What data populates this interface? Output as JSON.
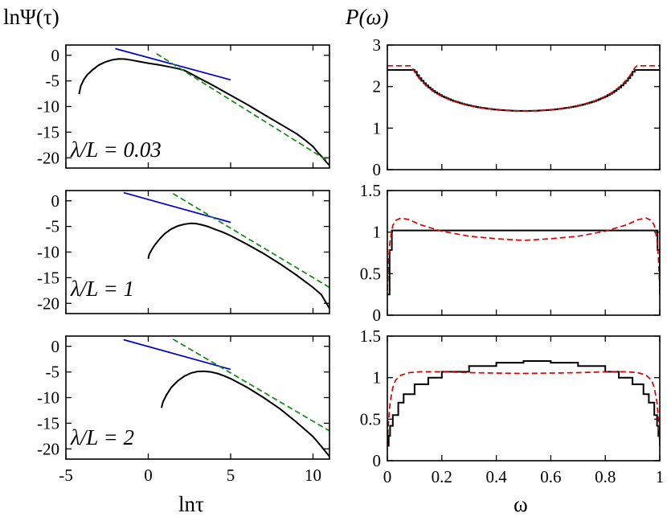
{
  "left_ylabel": "lnΨ(τ)",
  "right_ylabel": "P(ω)",
  "left_xlabel": "lnτ",
  "right_xlabel": "ω",
  "colors": {
    "black": "#000000",
    "blue": "#0000cc",
    "green": "#118811",
    "red": "#dd0000"
  },
  "chart_data": [
    {
      "type": "line",
      "panel": "left-top",
      "annotation": "λ/L = 0.03",
      "xlim": [
        -5,
        11
      ],
      "ylim": [
        -22,
        2
      ],
      "xticks": [
        -5,
        0,
        5,
        10
      ],
      "yticks": [
        0,
        -5,
        -10,
        -15,
        -20
      ],
      "ytick_labels": [
        "0",
        "-5",
        "-10",
        "-15",
        "-20"
      ],
      "series": [
        {
          "role": "simulation",
          "color": "black",
          "style": "solid",
          "x": [
            -4.2,
            -4.1,
            -3.9,
            -3.7,
            -3.4,
            -3.0,
            -2.6,
            -2.2,
            -1.8,
            -1.4,
            -1.0,
            -0.6,
            0.0,
            0.6,
            1.2,
            1.8,
            2.2,
            2.6,
            3.0,
            4.0,
            5.0,
            6.0,
            7.0,
            8.0,
            9.0,
            9.5,
            10.0,
            10.3,
            10.6,
            10.8,
            11.0
          ],
          "y": [
            -7.6,
            -6.0,
            -4.7,
            -3.8,
            -2.9,
            -1.9,
            -1.3,
            -0.9,
            -0.7,
            -0.75,
            -0.95,
            -1.2,
            -1.55,
            -1.85,
            -2.2,
            -2.6,
            -2.95,
            -3.6,
            -4.3,
            -6.0,
            -7.8,
            -9.6,
            -11.5,
            -13.4,
            -15.3,
            -16.5,
            -17.8,
            -19.0,
            -20.0,
            -20.8,
            -21.5
          ]
        },
        {
          "role": "fit-slope",
          "color": "blue",
          "style": "solid",
          "x": [
            -2.0,
            5.0
          ],
          "y": [
            1.3,
            -4.8
          ]
        },
        {
          "role": "asymptote",
          "color": "green",
          "style": "dashed",
          "x": [
            0.5,
            11.0
          ],
          "y": [
            0.3,
            -20.8
          ]
        }
      ]
    },
    {
      "type": "line",
      "panel": "left-middle",
      "annotation": "λ/L = 1",
      "xlim": [
        -5,
        11
      ],
      "ylim": [
        -22,
        2
      ],
      "xticks": [
        -5,
        0,
        5,
        10
      ],
      "yticks": [
        0,
        -5,
        -10,
        -15,
        -20
      ],
      "ytick_labels": [
        "0",
        "-5",
        "-10",
        "-15",
        "-20"
      ],
      "series": [
        {
          "role": "simulation",
          "color": "black",
          "style": "solid",
          "x": [
            0.0,
            0.05,
            0.2,
            0.4,
            0.7,
            1.0,
            1.4,
            1.8,
            2.2,
            2.6,
            2.9,
            3.2,
            3.6,
            4.0,
            4.5,
            5.0,
            6.0,
            7.0,
            8.0,
            9.0,
            10.0,
            10.5,
            11.0
          ],
          "y": [
            -11.3,
            -10.5,
            -9.6,
            -8.6,
            -7.4,
            -6.4,
            -5.5,
            -4.9,
            -4.55,
            -4.4,
            -4.45,
            -4.65,
            -5.0,
            -5.5,
            -6.1,
            -6.8,
            -8.5,
            -10.3,
            -12.3,
            -14.5,
            -16.9,
            -18.3,
            -21.0
          ]
        },
        {
          "role": "fit-slope",
          "color": "blue",
          "style": "solid",
          "x": [
            -1.5,
            5.0
          ],
          "y": [
            1.6,
            -4.2
          ]
        },
        {
          "role": "asymptote",
          "color": "green",
          "style": "dashed",
          "x": [
            1.5,
            11.0
          ],
          "y": [
            1.4,
            -16.9
          ]
        }
      ]
    },
    {
      "type": "line",
      "panel": "left-bottom",
      "annotation": "λ/L = 2",
      "xlim": [
        -5,
        11
      ],
      "ylim": [
        -22,
        2
      ],
      "xticks": [
        -5,
        0,
        5,
        10
      ],
      "xtick_labels": [
        "-5",
        "0",
        "5",
        "10"
      ],
      "yticks": [
        0,
        -5,
        -10,
        -15,
        -20
      ],
      "ytick_labels": [
        "0",
        "-5",
        "-10",
        "-15",
        "-20"
      ],
      "series": [
        {
          "role": "simulation",
          "color": "black",
          "style": "solid",
          "x": [
            0.8,
            0.9,
            1.1,
            1.4,
            1.8,
            2.2,
            2.6,
            3.0,
            3.4,
            3.8,
            4.2,
            4.6,
            5.0,
            6.0,
            7.0,
            8.0,
            9.0,
            10.0,
            10.5,
            11.0
          ],
          "y": [
            -12.0,
            -10.8,
            -9.5,
            -8.0,
            -6.7,
            -5.8,
            -5.2,
            -4.9,
            -4.85,
            -5.0,
            -5.3,
            -5.75,
            -6.3,
            -8.0,
            -10.0,
            -12.2,
            -14.8,
            -17.6,
            -19.5,
            -21.5
          ]
        },
        {
          "role": "fit-slope",
          "color": "blue",
          "style": "solid",
          "x": [
            -1.5,
            5.0
          ],
          "y": [
            1.3,
            -4.5
          ]
        },
        {
          "role": "asymptote",
          "color": "green",
          "style": "dashed",
          "x": [
            1.5,
            11.0
          ],
          "y": [
            1.4,
            -16.5
          ]
        }
      ]
    },
    {
      "type": "line",
      "panel": "right-top",
      "xlim": [
        0,
        1
      ],
      "ylim": [
        0,
        3
      ],
      "xticks": [
        0,
        0.2,
        0.4,
        0.6,
        0.8,
        1
      ],
      "yticks": [
        0,
        1,
        2,
        3
      ],
      "ytick_labels": [
        "0",
        "1",
        "2",
        "3"
      ],
      "series": [
        {
          "role": "histogram",
          "color": "black",
          "style": "step",
          "func": "arcsine",
          "amp": 0.707,
          "cap": 2.4
        },
        {
          "role": "theory",
          "color": "red",
          "style": "dashed",
          "func": "arcsine",
          "amp": 0.707,
          "cap": 2.5
        }
      ]
    },
    {
      "type": "line",
      "panel": "right-middle",
      "xlim": [
        0,
        1
      ],
      "ylim": [
        0,
        1.5
      ],
      "xticks": [
        0,
        0.2,
        0.4,
        0.6,
        0.8,
        1
      ],
      "yticks": [
        0,
        0.5,
        1,
        1.5
      ],
      "ytick_labels": [
        "0",
        "0.5",
        "1",
        "1.5"
      ],
      "series": [
        {
          "role": "histogram",
          "color": "black",
          "style": "step",
          "func": "flat",
          "level": 1.02,
          "edge": 0.012,
          "floor": 0.25
        },
        {
          "role": "theory",
          "color": "red",
          "style": "dashed",
          "x": [
            0.0,
            0.005,
            0.01,
            0.02,
            0.03,
            0.05,
            0.08,
            0.12,
            0.2,
            0.3,
            0.4,
            0.5,
            0.6,
            0.7,
            0.8,
            0.88,
            0.92,
            0.95,
            0.97,
            0.98,
            0.99,
            0.995,
            1.0
          ],
          "y": [
            0.3,
            0.7,
            0.9,
            1.08,
            1.14,
            1.17,
            1.15,
            1.09,
            1.01,
            0.95,
            0.92,
            0.9,
            0.92,
            0.95,
            1.01,
            1.09,
            1.15,
            1.17,
            1.14,
            1.08,
            0.9,
            0.7,
            0.3
          ]
        }
      ]
    },
    {
      "type": "line",
      "panel": "right-bottom",
      "xlim": [
        0,
        1
      ],
      "ylim": [
        0,
        1.5
      ],
      "xticks": [
        0,
        0.2,
        0.4,
        0.6,
        0.8,
        1
      ],
      "xtick_labels": [
        "0",
        "0.2",
        "0.4",
        "0.6",
        "0.8",
        "1"
      ],
      "yticks": [
        0,
        0.5,
        1,
        1.5
      ],
      "ytick_labels": [
        "0",
        "0.5",
        "1",
        "1.5"
      ],
      "series": [
        {
          "role": "histogram",
          "color": "black",
          "style": "step",
          "x": [
            0.0,
            0.005,
            0.01,
            0.02,
            0.04,
            0.06,
            0.1,
            0.15,
            0.2,
            0.3,
            0.4,
            0.5,
            0.6,
            0.7,
            0.8,
            0.85,
            0.9,
            0.94,
            0.96,
            0.98,
            0.99,
            0.995,
            1.0
          ],
          "y": [
            0.18,
            0.3,
            0.42,
            0.55,
            0.7,
            0.8,
            0.92,
            1.0,
            1.07,
            1.14,
            1.18,
            1.2,
            1.18,
            1.14,
            1.07,
            1.0,
            0.92,
            0.8,
            0.7,
            0.55,
            0.42,
            0.3,
            0.18
          ]
        },
        {
          "role": "theory",
          "color": "red",
          "style": "dashed",
          "x": [
            0.0,
            0.005,
            0.01,
            0.02,
            0.03,
            0.05,
            0.08,
            0.12,
            0.2,
            0.3,
            0.4,
            0.5,
            0.6,
            0.7,
            0.8,
            0.88,
            0.92,
            0.95,
            0.97,
            0.98,
            0.99,
            0.995,
            1.0
          ],
          "y": [
            0.2,
            0.5,
            0.7,
            0.88,
            0.97,
            1.03,
            1.06,
            1.07,
            1.07,
            1.06,
            1.055,
            1.05,
            1.055,
            1.06,
            1.07,
            1.07,
            1.06,
            1.03,
            0.97,
            0.88,
            0.7,
            0.5,
            0.2
          ]
        }
      ]
    }
  ]
}
